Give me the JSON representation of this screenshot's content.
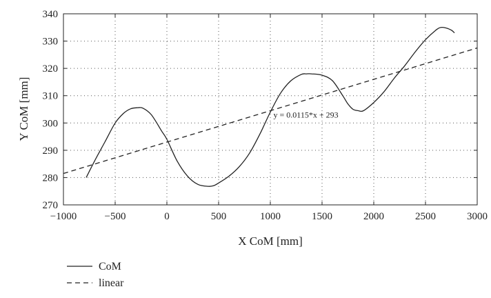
{
  "chart_data": {
    "type": "line",
    "xlabel": "X CoM [mm]",
    "ylabel": "Y CoM [mm]",
    "xlim": [
      -1000,
      3000
    ],
    "ylim": [
      270,
      340
    ],
    "xticks": [
      -1000,
      -500,
      0,
      500,
      1000,
      1500,
      2000,
      2500,
      3000
    ],
    "xtick_labels": [
      "−1000",
      "−500",
      "0",
      "500",
      "1000",
      "1500",
      "2000",
      "2500",
      "3000"
    ],
    "yticks": [
      270,
      280,
      290,
      300,
      310,
      320,
      330,
      340
    ],
    "ytick_labels": [
      "270",
      "280",
      "290",
      "300",
      "310",
      "320",
      "330",
      "340"
    ],
    "grid": true,
    "legend_position": "below-left",
    "annotation": {
      "text": "y = 0.0115*x + 293",
      "x": 1030,
      "y": 302
    },
    "series": [
      {
        "name": "CoM",
        "style": "solid",
        "color": "#222222",
        "x": [
          -780,
          -700,
          -600,
          -500,
          -420,
          -350,
          -280,
          -230,
          -150,
          -50,
          0,
          100,
          200,
          300,
          400,
          450,
          500,
          600,
          700,
          800,
          900,
          1000,
          1100,
          1200,
          1300,
          1350,
          1400,
          1500,
          1600,
          1700,
          1750,
          1800,
          1850,
          1900,
          2000,
          2100,
          2200,
          2300,
          2400,
          2500,
          2600,
          2650,
          2700,
          2750,
          2780
        ],
        "y": [
          280,
          286,
          293,
          300,
          303.5,
          305.2,
          305.6,
          305.4,
          303,
          297,
          294,
          286,
          280.5,
          277.5,
          276.8,
          277,
          278,
          280.5,
          284,
          289,
          296,
          304,
          311,
          315.5,
          317.8,
          318,
          318,
          317.5,
          315.5,
          310,
          307,
          305,
          304.5,
          304.5,
          307.5,
          311.5,
          316.5,
          321,
          326,
          330.5,
          334,
          335,
          334.8,
          334,
          333
        ]
      },
      {
        "name": "linear",
        "style": "dashed",
        "color": "#222222",
        "x": [
          -1000,
          3000
        ],
        "y": [
          281.5,
          327.5
        ]
      }
    ]
  }
}
